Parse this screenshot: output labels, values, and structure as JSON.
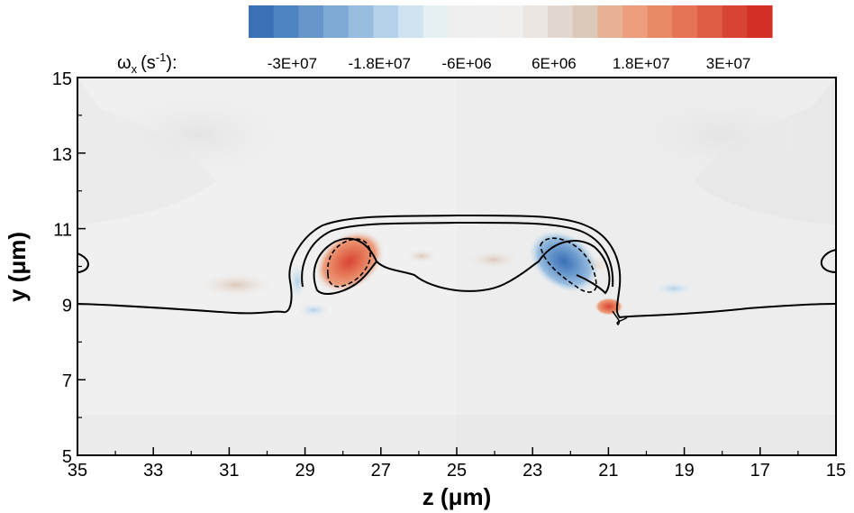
{
  "chart_data": {
    "type": "heatmap",
    "title": "",
    "xlabel": "z (μm)",
    "ylabel": "y (μm)",
    "xlim": [
      35,
      15
    ],
    "ylim": [
      5,
      15
    ],
    "x_ticks": [
      "35",
      "33",
      "31",
      "29",
      "27",
      "25",
      "23",
      "21",
      "19",
      "17",
      "15"
    ],
    "y_ticks": [
      "5",
      "7",
      "9",
      "11",
      "13",
      "15"
    ],
    "colorbar": {
      "label_symbol": "ω",
      "label_subscript": "x",
      "label_unit_prefix": "(s",
      "label_unit_exp": "-1",
      "label_unit_suffix": "):",
      "range": [
        -36000000.0,
        36000000.0
      ],
      "levels": 21,
      "tick_labels": [
        "-3E+07",
        "-1.8E+07",
        "-6E+06",
        "6E+06",
        "1.8E+07",
        "3E+07"
      ],
      "tick_values": [
        -30000000.0,
        -18000000.0,
        -6000000.0,
        6000000.0,
        18000000.0,
        30000000.0
      ],
      "colors": [
        "#3b6fb6",
        "#4f82c0",
        "#6696cb",
        "#7faad5",
        "#98bddf",
        "#b3d1e8",
        "#cfe3f0",
        "#e6f0f3",
        "#efefef",
        "#f0f0f0",
        "#f0efee",
        "#ebe6e2",
        "#e3d8cf",
        "#dcc9ba",
        "#e8b194",
        "#ec9e7d",
        "#e98a67",
        "#e47454",
        "#de5d44",
        "#d84434",
        "#d23027"
      ],
      "neutral_color": "#f0f0f0"
    },
    "vortices": [
      {
        "name": "positive",
        "z": 27.6,
        "y": 10.2,
        "peak": 33000000.0
      },
      {
        "name": "negative",
        "z": 22.4,
        "y": 10.2,
        "peak": -33000000.0
      },
      {
        "name": "positive",
        "z": 20.8,
        "y": 8.7,
        "peak": 18000000.0
      },
      {
        "name": "negative",
        "z": 29.2,
        "y": 8.9,
        "peak": -12000000.0
      }
    ]
  }
}
